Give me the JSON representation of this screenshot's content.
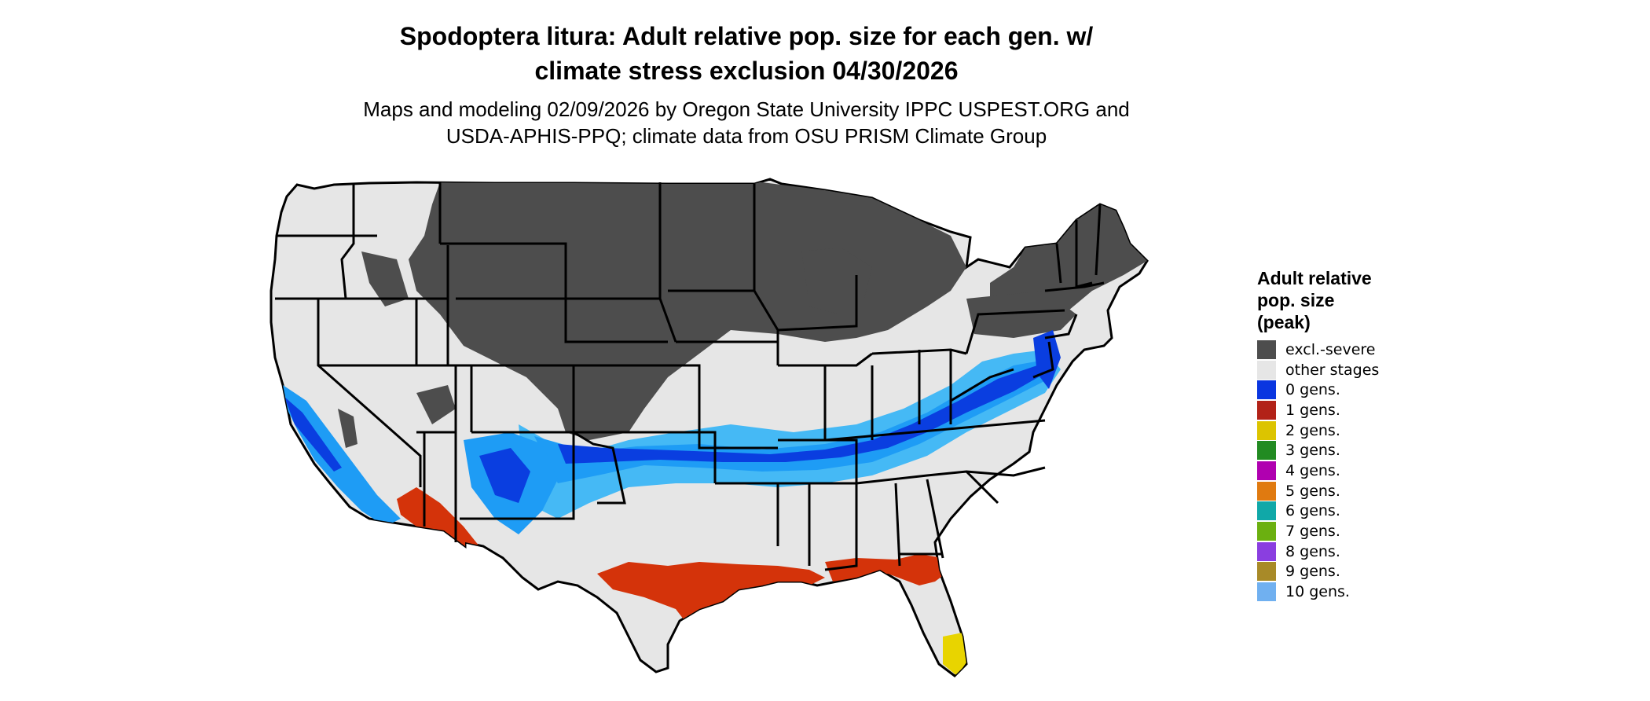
{
  "title": {
    "line1": "Spodoptera litura: Adult relative pop. size for each gen. w/",
    "line2": "climate stress exclusion 04/30/2026"
  },
  "subtitle": {
    "line1": "Maps and modeling 02/09/2026 by Oregon State University IPPC USPEST.ORG and",
    "line2": "USDA-APHIS-PPQ; climate data from OSU PRISM Climate Group"
  },
  "map": {
    "region": "conterminous-united-states",
    "colors": {
      "background_land": "#e6e6e6",
      "excluded": "#4d4d4d",
      "borders": "#000000",
      "zero_gens": "#0a3ee0",
      "light_blue": "#1e9cf5",
      "pale_blue": "#45b9f5",
      "one_gen": "#d4330a",
      "two_gens": "#e8d400"
    }
  },
  "legend": {
    "title_lines": [
      "Adult relative",
      "pop. size",
      "(peak)"
    ],
    "items": [
      {
        "label": "excl.-severe",
        "color": "#4d4d4d"
      },
      {
        "label": "other stages",
        "color": "#e6e6e6"
      },
      {
        "label": "0 gens.",
        "color": "#0a36e0"
      },
      {
        "label": "1 gens.",
        "color": "#b22218"
      },
      {
        "label": "2 gens.",
        "color": "#dcc400"
      },
      {
        "label": "3 gens.",
        "color": "#228b22"
      },
      {
        "label": "4 gens.",
        "color": "#b000b0"
      },
      {
        "label": "5 gens.",
        "color": "#e07a10"
      },
      {
        "label": "6 gens.",
        "color": "#10a8a8"
      },
      {
        "label": "7 gens.",
        "color": "#6bb010"
      },
      {
        "label": "8 gens.",
        "color": "#8a3ee0"
      },
      {
        "label": "9 gens.",
        "color": "#a88a28"
      },
      {
        "label": "10 gens.",
        "color": "#70b0f0"
      }
    ]
  }
}
